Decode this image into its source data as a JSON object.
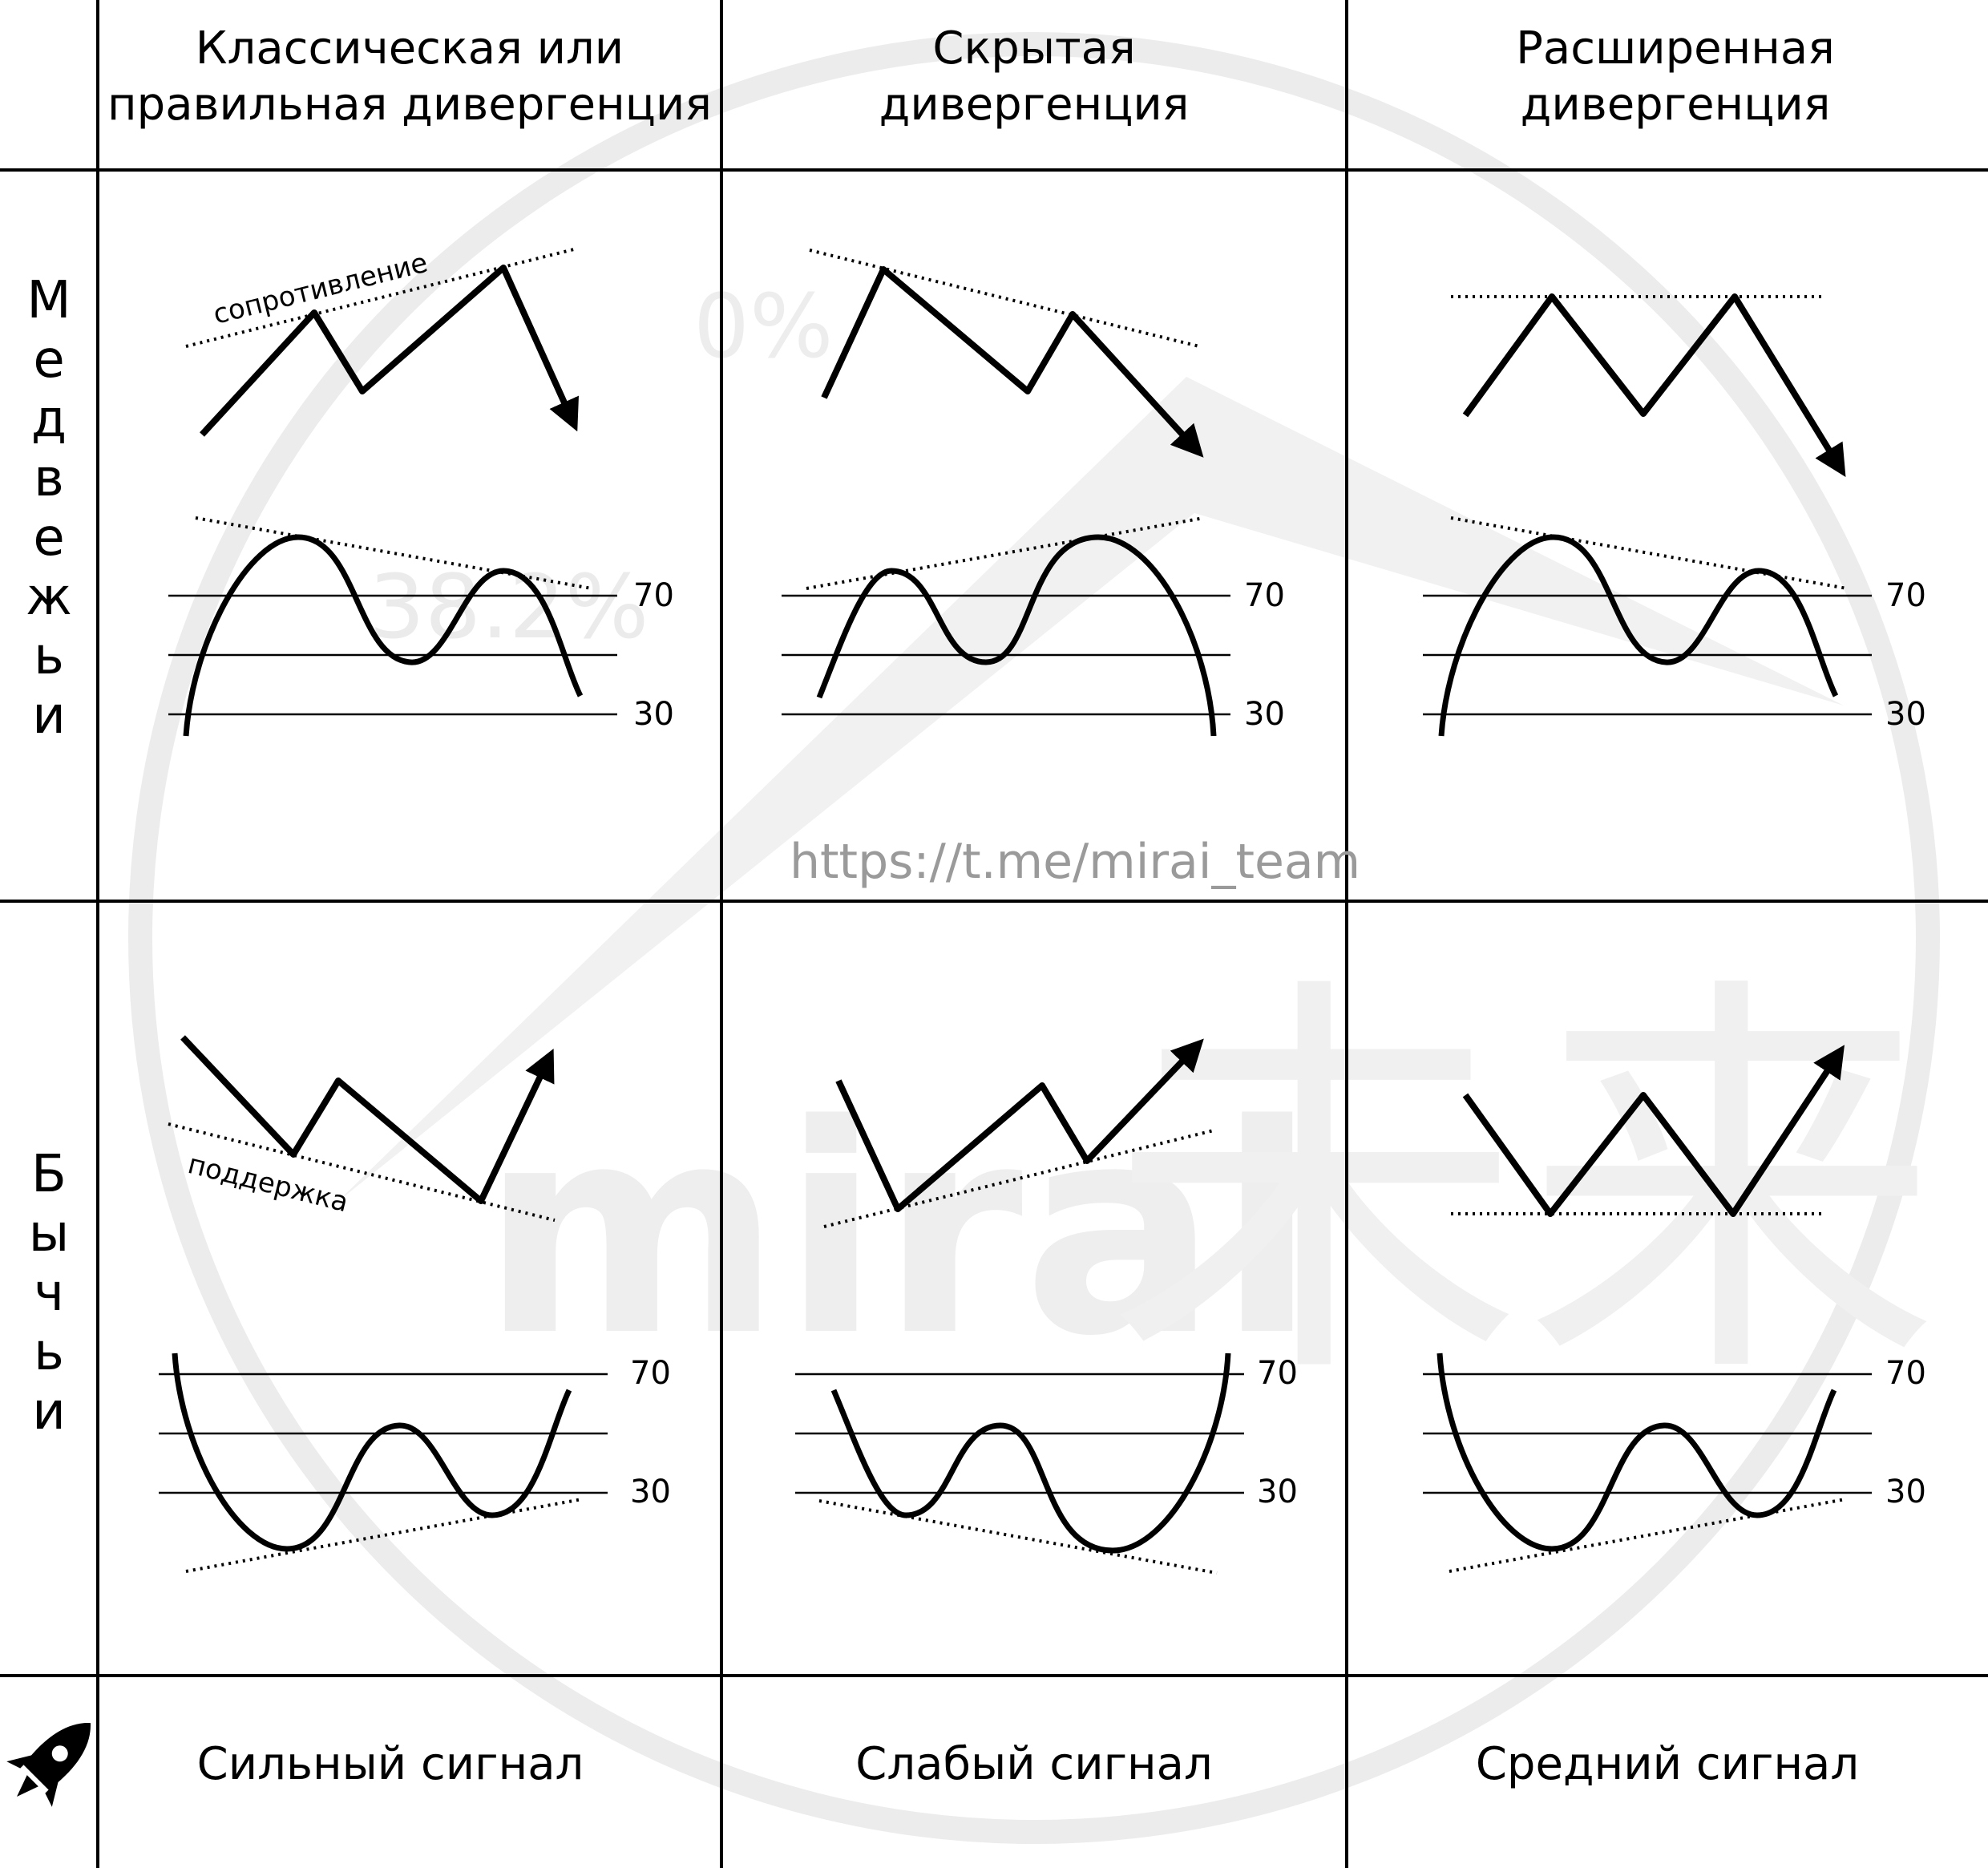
{
  "columns": [
    {
      "title_line1": "Классическая или",
      "title_line2": "правильная дивергенция"
    },
    {
      "title_line1": "Скрытая",
      "title_line2": "дивергенция"
    },
    {
      "title_line1": "Расширенная",
      "title_line2": "дивергенция"
    }
  ],
  "rows": {
    "bearish_label": [
      "М",
      "е",
      "д",
      "в",
      "е",
      "ж",
      "ь",
      "и"
    ],
    "bullish_label": [
      "Б",
      "ы",
      "ч",
      "ь",
      "и"
    ]
  },
  "annotations": {
    "resistance": "сопротивление",
    "support": "поддержка"
  },
  "levels": {
    "upper": "70",
    "lower": "30"
  },
  "signals": [
    "Сильный сигнал",
    "Слабый сигнал",
    "Средний сигнал"
  ],
  "watermark": {
    "url": "https://t.me/mirai_team",
    "brand": "mirai",
    "kanji": "未来",
    "percent_top": "0%",
    "percent_mid": "38.2%"
  },
  "icons": {
    "signal_strength": "rocket-icon"
  }
}
